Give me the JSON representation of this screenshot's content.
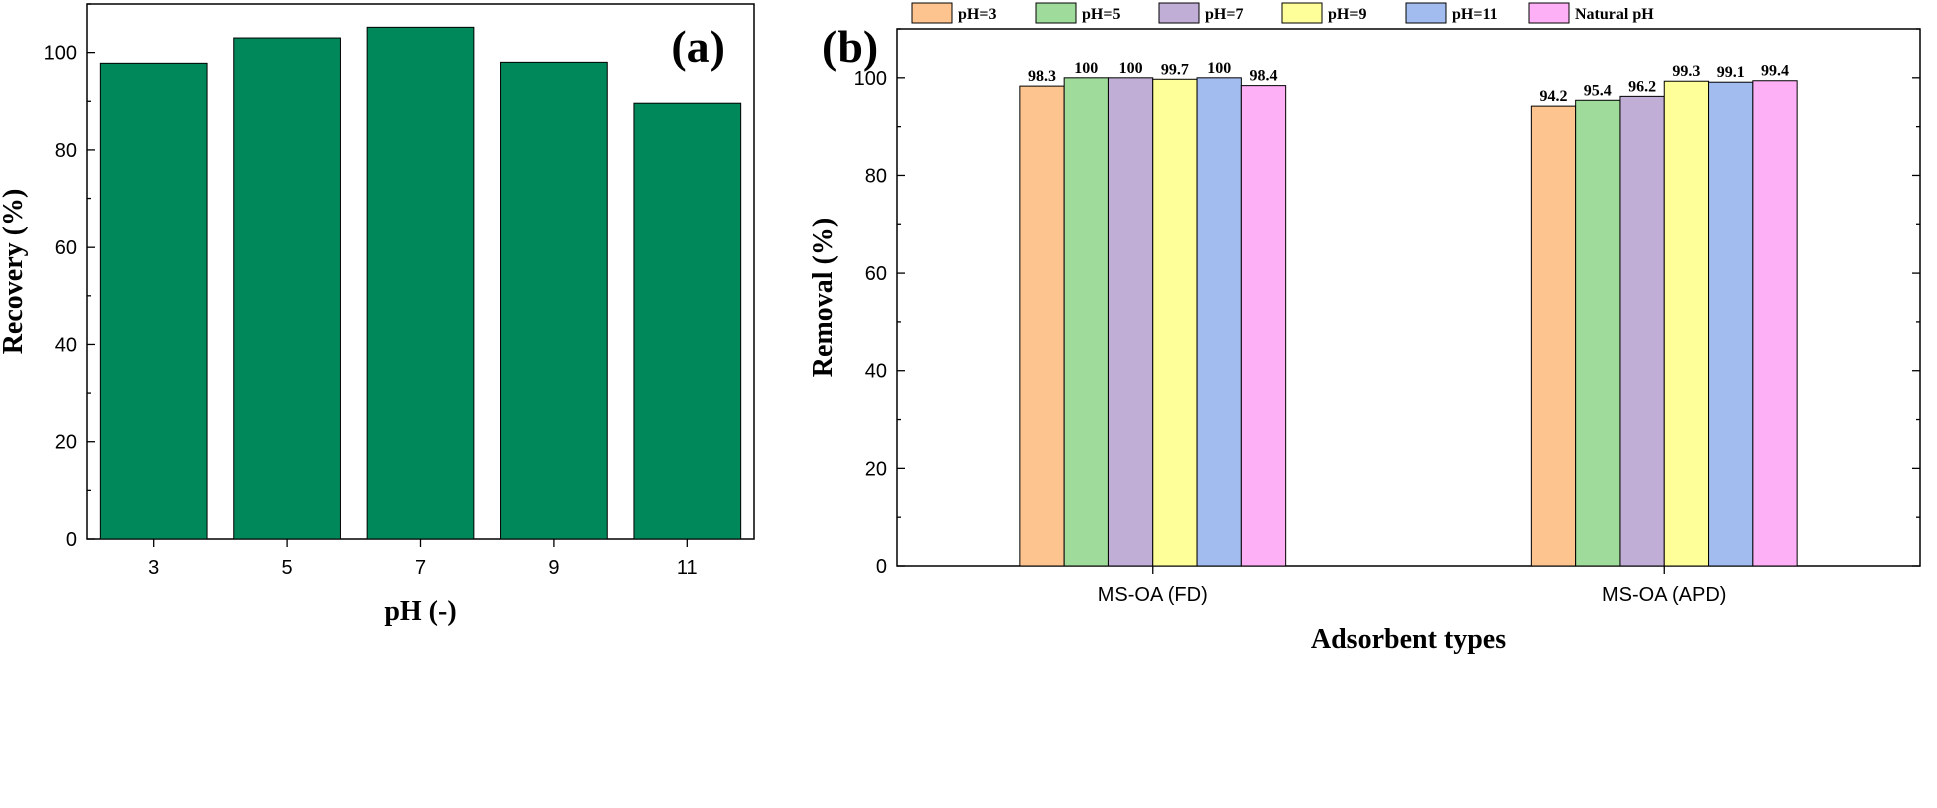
{
  "chart_data": [
    {
      "type": "bar",
      "panel_label": "(a)",
      "categories": [
        "3",
        "5",
        "7",
        "9",
        "11"
      ],
      "values": [
        97.8,
        103.0,
        105.2,
        98.0,
        89.6
      ],
      "xlabel": "pH (-)",
      "ylabel": "Recovery (%)",
      "ylim": [
        0,
        110
      ],
      "yticks": [
        "0",
        "20",
        "40",
        "60",
        "80",
        "100"
      ],
      "colors": {
        "bar": "#00875a"
      },
      "grid": false,
      "legend": "none"
    },
    {
      "type": "bar",
      "panel_label": "(b)",
      "categories": [
        "MS-OA (FD)",
        "MS-OA (APD)"
      ],
      "series": [
        {
          "name": "pH=3",
          "color": "#fdc48f",
          "values": [
            98.3,
            94.2
          ],
          "labels": [
            "98.3",
            "94.2"
          ]
        },
        {
          "name": "pH=5",
          "color": "#9fdc9c",
          "values": [
            100,
            95.4
          ],
          "labels": [
            "100",
            "95.4"
          ]
        },
        {
          "name": "pH=7",
          "color": "#c0aed7",
          "values": [
            100,
            96.2
          ],
          "labels": [
            "100",
            "96.2"
          ]
        },
        {
          "name": "pH=9",
          "color": "#ffff99",
          "values": [
            99.7,
            99.3
          ],
          "labels": [
            "99.7",
            "99.3"
          ]
        },
        {
          "name": "pH=11",
          "color": "#a2bcf0",
          "values": [
            100,
            99.1
          ],
          "labels": [
            "100",
            "99.1"
          ]
        },
        {
          "name": "Natural pH",
          "color": "#feb0f6",
          "values": [
            98.4,
            99.4
          ],
          "labels": [
            "98.4",
            "99.4"
          ]
        }
      ],
      "xlabel": "Adsorbent types",
      "ylabel": "Removal (%)",
      "ylim": [
        0,
        110
      ],
      "yticks": [
        "0",
        "20",
        "40",
        "60",
        "80",
        "100"
      ],
      "grid": false,
      "legend": "top"
    }
  ]
}
